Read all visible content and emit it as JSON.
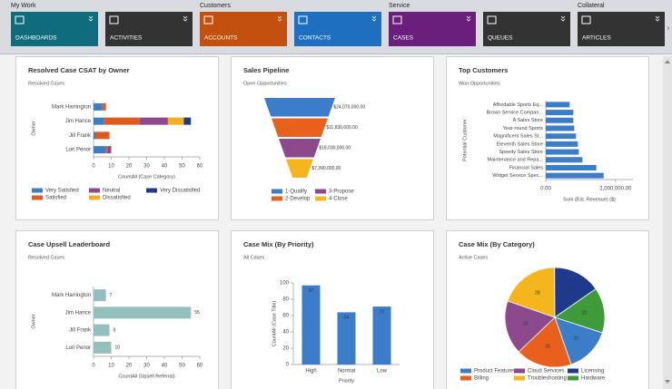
{
  "nav": {
    "groups": [
      {
        "label": "My Work"
      },
      {
        "label": "Customers"
      },
      {
        "label": "Service"
      },
      {
        "label": "Collateral"
      }
    ],
    "tiles": [
      {
        "label": "DASHBOARDS",
        "color": "#0f6c7c"
      },
      {
        "label": "ACTIVITIES",
        "color": "#333333"
      },
      {
        "label": "ACCOUNTS",
        "color": "#c4500f"
      },
      {
        "label": "CONTACTS",
        "color": "#1e6fbf"
      },
      {
        "label": "CASES",
        "color": "#6b1f7c"
      },
      {
        "label": "QUEUES",
        "color": "#333333"
      },
      {
        "label": "ARTICLES",
        "color": "#333333"
      }
    ]
  },
  "chart_data": [
    {
      "type": "bar",
      "orientation": "horizontal",
      "stacked": true,
      "title": "Resolved Case CSAT by Owner",
      "subtitle": "Resolved Cases",
      "categories": [
        "Mark Harrington",
        "Jim Hance",
        "Jill Frank",
        "Lori Penor"
      ],
      "series": [
        {
          "name": "Very Satisfied",
          "color": "#3b7dc8",
          "values": [
            5,
            6,
            1,
            7
          ]
        },
        {
          "name": "Satisfied",
          "color": "#e05a1e",
          "values": [
            2,
            20,
            8,
            1
          ]
        },
        {
          "name": "Neutral",
          "color": "#8c4a8c",
          "values": [
            0,
            16,
            0,
            2
          ]
        },
        {
          "name": "Dissatisfied",
          "color": "#f2b01e",
          "values": [
            0,
            9,
            0,
            0
          ]
        },
        {
          "name": "Very Dissatisfied",
          "color": "#1f3a8c",
          "values": [
            0,
            4,
            0,
            0
          ]
        }
      ],
      "xlim": [
        0,
        60
      ],
      "xticks": [
        0,
        10,
        20,
        30,
        40,
        50,
        60
      ],
      "xlabel": "CountAll (Case Category)",
      "ylabel": "Owner"
    },
    {
      "type": "funnel",
      "title": "Sales Pipeline",
      "subtitle": "Open Opportunities",
      "categories": [
        "1-Qualify",
        "2-Develop",
        "3-Propose",
        "4-Close"
      ],
      "values": [
        24070000,
        11830000,
        18030000,
        7390000
      ],
      "value_labels": [
        "$24,070,000.00",
        "$11,830,000.00",
        "$18,030,000.00",
        "$7,390,000.00"
      ],
      "colors": [
        "#3b7dc8",
        "#e8601c",
        "#8c4a8c",
        "#f5b51c"
      ]
    },
    {
      "type": "bar",
      "orientation": "horizontal",
      "title": "Top Customers",
      "subtitle": "Won Opportunities",
      "categories": [
        "Affordable Sports Eq...",
        "Brown Service Compan...",
        "A Sales Store",
        "Year-round Sports",
        "Magnificent Sales St...",
        "Eleventh Sales Store",
        "Speedy Sales Store",
        "Maintenance and Repa...",
        "Financial Sales",
        "Widget Service Spec..."
      ],
      "values": [
        684000,
        789000,
        789000,
        816000,
        868000,
        921000,
        947000,
        1050000,
        1450000,
        1660000
      ],
      "color": "#3b7dc8",
      "xlim": [
        0,
        2500000
      ],
      "xticks": [
        {
          "value": 0,
          "label": "0.00"
        },
        {
          "value": 2000000,
          "label": "2,000,000.00"
        }
      ],
      "xlabel": "Sum (Est. Revenue) ($)",
      "ylabel": "Potential Customer"
    },
    {
      "type": "bar",
      "orientation": "horizontal",
      "data_labels": true,
      "title": "Case Upsell Leaderboard",
      "subtitle": "Resolved Cases",
      "categories": [
        "Mark Harrington",
        "Jim Hance",
        "Jill Frank",
        "Lori Penor"
      ],
      "values": [
        7,
        55,
        9,
        10
      ],
      "color": "#93bfbd",
      "xlim": [
        0,
        60
      ],
      "xticks": [
        0,
        10,
        20,
        30,
        40,
        50,
        60
      ],
      "xlabel": "CountAll (Upsell Referral)",
      "ylabel": "Owner"
    },
    {
      "type": "bar",
      "orientation": "vertical",
      "data_labels": true,
      "title": "Case Mix (By Priority)",
      "subtitle": "All Cases",
      "categories": [
        "High",
        "Normal",
        "Low"
      ],
      "values": [
        97,
        64,
        71
      ],
      "color": "#3b7dc8",
      "ylim": [
        0,
        100
      ],
      "yticks": [
        0,
        20,
        40,
        60,
        80,
        100
      ],
      "xlabel": "Priority",
      "ylabel": "CountAll (Case Title)"
    },
    {
      "type": "pie",
      "title": "Case Mix (By Category)",
      "subtitle": "Active Cases",
      "categories": [
        "Product Features",
        "Billing",
        "Cloud Services",
        "Troubleshooting",
        "Licensing",
        "Hardware"
      ],
      "values": [
        21,
        26,
        25,
        28,
        22,
        21
      ],
      "colors": [
        "#3b7dc8",
        "#e8601c",
        "#8c4a8c",
        "#f5b51c",
        "#1f3a8c",
        "#3f9a3a"
      ]
    }
  ]
}
